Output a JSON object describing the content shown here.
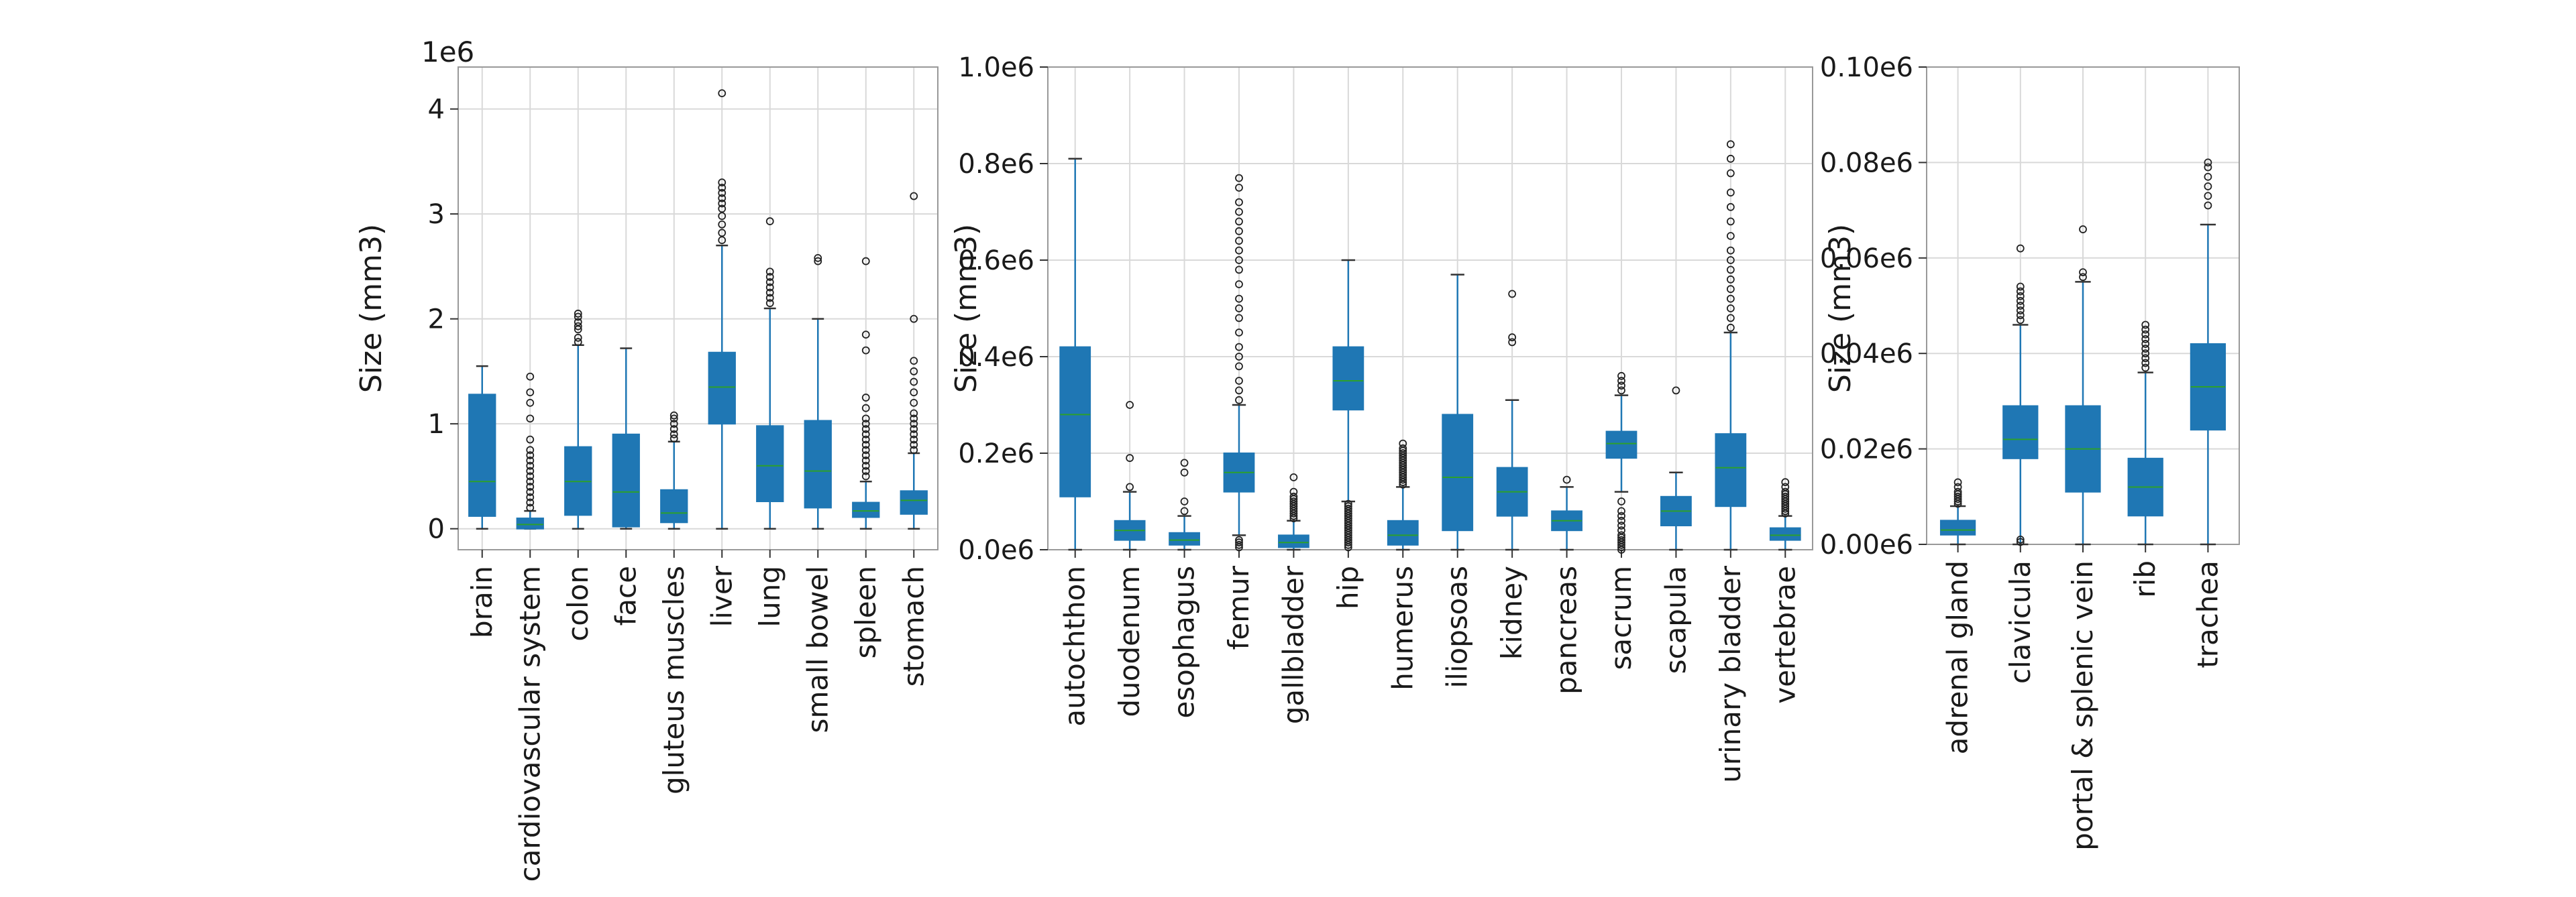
{
  "colors": {
    "box": "#1f77b4",
    "whisker": "#1f77b4",
    "median": "#2ca02c",
    "grid": "#d9d9d9",
    "frame": "#999999",
    "flier": "#222222"
  },
  "chart_data": [
    {
      "type": "box",
      "ylabel": "Size (mm3)",
      "offset_label": "1e6",
      "ylim": [
        -0.2,
        4.4
      ],
      "yticks": [
        0,
        1,
        2,
        3,
        4
      ],
      "ytick_labels": [
        "0",
        "1",
        "2",
        "3",
        "4"
      ],
      "categories": [
        "brain",
        "cardiovascular system",
        "colon",
        "face",
        "gluteus muscles",
        "liver",
        "lung",
        "small bowel",
        "spleen",
        "stomach"
      ],
      "boxes": [
        {
          "label": "brain",
          "whislo": 0.0,
          "q1": 0.12,
          "med": 0.45,
          "q3": 1.28,
          "whishi": 1.55,
          "fliers": []
        },
        {
          "label": "cardiovascular system",
          "whislo": 0.0,
          "q1": 0.0,
          "med": 0.04,
          "q3": 0.1,
          "whishi": 0.17,
          "fliers": [
            0.2,
            0.25,
            0.3,
            0.35,
            0.4,
            0.45,
            0.5,
            0.55,
            0.6,
            0.65,
            0.7,
            0.75,
            0.85,
            1.05,
            1.2,
            1.3,
            1.45
          ]
        },
        {
          "label": "colon",
          "whislo": 0.0,
          "q1": 0.13,
          "med": 0.45,
          "q3": 0.78,
          "whishi": 1.75,
          "fliers": [
            1.78,
            1.82,
            1.9,
            1.93,
            1.97,
            2.02,
            2.05
          ]
        },
        {
          "label": "face",
          "whislo": 0.0,
          "q1": 0.02,
          "med": 0.35,
          "q3": 0.9,
          "whishi": 1.72,
          "fliers": []
        },
        {
          "label": "gluteus muscles",
          "whislo": 0.0,
          "q1": 0.06,
          "med": 0.15,
          "q3": 0.37,
          "whishi": 0.83,
          "fliers": [
            0.86,
            0.9,
            0.95,
            1.0,
            1.05,
            1.08
          ]
        },
        {
          "label": "liver",
          "whislo": 0.0,
          "q1": 1.0,
          "med": 1.35,
          "q3": 1.68,
          "whishi": 2.7,
          "fliers": [
            2.75,
            2.82,
            2.9,
            2.98,
            3.05,
            3.1,
            3.15,
            3.2,
            3.25,
            3.3,
            4.15
          ]
        },
        {
          "label": "lung",
          "whislo": 0.0,
          "q1": 0.26,
          "med": 0.6,
          "q3": 0.98,
          "whishi": 2.1,
          "fliers": [
            2.15,
            2.2,
            2.25,
            2.3,
            2.35,
            2.4,
            2.45,
            2.93
          ]
        },
        {
          "label": "small bowel",
          "whislo": 0.0,
          "q1": 0.2,
          "med": 0.55,
          "q3": 1.03,
          "whishi": 2.0,
          "fliers": [
            2.55,
            2.58
          ]
        },
        {
          "label": "spleen",
          "whislo": 0.0,
          "q1": 0.11,
          "med": 0.17,
          "q3": 0.25,
          "whishi": 0.45,
          "fliers": [
            0.5,
            0.55,
            0.6,
            0.65,
            0.7,
            0.75,
            0.8,
            0.85,
            0.9,
            0.95,
            1.0,
            1.05,
            1.15,
            1.25,
            1.7,
            1.85,
            2.55
          ]
        },
        {
          "label": "stomach",
          "whislo": 0.0,
          "q1": 0.14,
          "med": 0.27,
          "q3": 0.36,
          "whishi": 0.72,
          "fliers": [
            0.75,
            0.8,
            0.85,
            0.9,
            0.95,
            1.0,
            1.05,
            1.1,
            1.2,
            1.3,
            1.4,
            1.5,
            1.6,
            2.0,
            3.17
          ]
        }
      ]
    },
    {
      "type": "box",
      "ylabel": "Size (mm3)",
      "ylim": [
        0.0,
        1.0
      ],
      "yticks": [
        0.0,
        0.2,
        0.4,
        0.6,
        0.8,
        1.0
      ],
      "ytick_labels": [
        "0.0e6",
        "0.2e6",
        "0.4e6",
        "0.6e6",
        "0.8e6",
        "1.0e6"
      ],
      "categories": [
        "autochthon",
        "duodenum",
        "esophagus",
        "femur",
        "gallbladder",
        "hip",
        "humerus",
        "iliopsoas",
        "kidney",
        "pancreas",
        "sacrum",
        "scapula",
        "urinary bladder",
        "vertebrae"
      ],
      "boxes": [
        {
          "label": "autochthon",
          "whislo": 0.0,
          "q1": 0.11,
          "med": 0.28,
          "q3": 0.42,
          "whishi": 0.81,
          "fliers": []
        },
        {
          "label": "duodenum",
          "whislo": 0.0,
          "q1": 0.02,
          "med": 0.04,
          "q3": 0.06,
          "whishi": 0.12,
          "fliers": [
            0.13,
            0.19,
            0.3
          ]
        },
        {
          "label": "esophagus",
          "whislo": 0.0,
          "q1": 0.01,
          "med": 0.02,
          "q3": 0.035,
          "whishi": 0.07,
          "fliers": [
            0.08,
            0.1,
            0.16,
            0.18
          ]
        },
        {
          "label": "femur",
          "whislo": 0.03,
          "q1": 0.12,
          "med": 0.16,
          "q3": 0.2,
          "whishi": 0.3,
          "fliers": [
            0.005,
            0.01,
            0.015,
            0.02,
            0.31,
            0.33,
            0.35,
            0.38,
            0.4,
            0.42,
            0.45,
            0.48,
            0.5,
            0.52,
            0.55,
            0.58,
            0.6,
            0.62,
            0.64,
            0.66,
            0.68,
            0.7,
            0.72,
            0.75,
            0.77
          ]
        },
        {
          "label": "gallbladder",
          "whislo": 0.0,
          "q1": 0.005,
          "med": 0.015,
          "q3": 0.03,
          "whishi": 0.06,
          "fliers": [
            0.065,
            0.07,
            0.075,
            0.08,
            0.085,
            0.09,
            0.095,
            0.1,
            0.105,
            0.11,
            0.12,
            0.15
          ]
        },
        {
          "label": "hip",
          "whislo": 0.1,
          "q1": 0.29,
          "med": 0.35,
          "q3": 0.42,
          "whishi": 0.6,
          "fliers": [
            0.005,
            0.01,
            0.015,
            0.02,
            0.025,
            0.03,
            0.035,
            0.04,
            0.045,
            0.05,
            0.055,
            0.06,
            0.065,
            0.07,
            0.075,
            0.08,
            0.085,
            0.09,
            0.095
          ]
        },
        {
          "label": "humerus",
          "whislo": 0.0,
          "q1": 0.01,
          "med": 0.03,
          "q3": 0.06,
          "whishi": 0.13,
          "fliers": [
            0.135,
            0.14,
            0.145,
            0.15,
            0.155,
            0.16,
            0.165,
            0.17,
            0.175,
            0.18,
            0.185,
            0.19,
            0.195,
            0.2,
            0.205,
            0.21,
            0.22
          ]
        },
        {
          "label": "iliopsoas",
          "whislo": 0.0,
          "q1": 0.04,
          "med": 0.15,
          "q3": 0.28,
          "whishi": 0.57,
          "fliers": []
        },
        {
          "label": "kidney",
          "whislo": 0.0,
          "q1": 0.07,
          "med": 0.12,
          "q3": 0.17,
          "whishi": 0.31,
          "fliers": [
            0.43,
            0.44,
            0.53
          ]
        },
        {
          "label": "pancreas",
          "whislo": 0.0,
          "q1": 0.04,
          "med": 0.06,
          "q3": 0.08,
          "whishi": 0.13,
          "fliers": [
            0.145
          ]
        },
        {
          "label": "sacrum",
          "whislo": 0.12,
          "q1": 0.19,
          "med": 0.22,
          "q3": 0.245,
          "whishi": 0.32,
          "fliers": [
            0.0,
            0.005,
            0.01,
            0.015,
            0.02,
            0.025,
            0.03,
            0.04,
            0.05,
            0.06,
            0.07,
            0.08,
            0.1,
            0.33,
            0.34,
            0.35,
            0.36
          ]
        },
        {
          "label": "scapula",
          "whislo": 0.0,
          "q1": 0.05,
          "med": 0.08,
          "q3": 0.11,
          "whishi": 0.16,
          "fliers": [
            0.33
          ]
        },
        {
          "label": "urinary bladder",
          "whislo": 0.0,
          "q1": 0.09,
          "med": 0.17,
          "q3": 0.24,
          "whishi": 0.45,
          "fliers": [
            0.46,
            0.48,
            0.5,
            0.52,
            0.54,
            0.56,
            0.58,
            0.6,
            0.62,
            0.65,
            0.68,
            0.71,
            0.74,
            0.78,
            0.81,
            0.84
          ]
        },
        {
          "label": "vertebrae",
          "whislo": 0.0,
          "q1": 0.02,
          "med": 0.03,
          "q3": 0.045,
          "whishi": 0.07,
          "fliers": [
            0.075,
            0.08,
            0.085,
            0.09,
            0.095,
            0.1,
            0.105,
            0.11,
            0.115,
            0.12,
            0.13,
            0.14
          ]
        }
      ]
    },
    {
      "type": "box",
      "ylabel": "Size (mm3)",
      "ylim": [
        0.0,
        0.1
      ],
      "yticks": [
        0.0,
        0.02,
        0.04,
        0.06,
        0.08,
        0.1
      ],
      "ytick_labels": [
        "0.00e6",
        "0.02e6",
        "0.04e6",
        "0.06e6",
        "0.08e6",
        "0.10e6"
      ],
      "categories": [
        "adrenal gland",
        "clavicula",
        "portal & splenic vein",
        "rib",
        "trachea"
      ],
      "boxes": [
        {
          "label": "adrenal gland",
          "whislo": 0.0,
          "q1": 0.002,
          "med": 0.003,
          "q3": 0.005,
          "whishi": 0.008,
          "fliers": [
            0.0085,
            0.009,
            0.0095,
            0.01,
            0.0105,
            0.011,
            0.012,
            0.013
          ]
        },
        {
          "label": "clavicula",
          "whislo": 0.0,
          "q1": 0.018,
          "med": 0.022,
          "q3": 0.029,
          "whishi": 0.046,
          "fliers": [
            0.0005,
            0.001,
            0.047,
            0.048,
            0.049,
            0.05,
            0.051,
            0.052,
            0.053,
            0.054,
            0.062
          ]
        },
        {
          "label": "portal & splenic vein",
          "whislo": 0.0,
          "q1": 0.011,
          "med": 0.02,
          "q3": 0.029,
          "whishi": 0.055,
          "fliers": [
            0.056,
            0.057,
            0.066
          ]
        },
        {
          "label": "rib",
          "whislo": 0.0,
          "q1": 0.006,
          "med": 0.012,
          "q3": 0.018,
          "whishi": 0.036,
          "fliers": [
            0.037,
            0.038,
            0.039,
            0.04,
            0.041,
            0.042,
            0.043,
            0.044,
            0.045,
            0.046
          ]
        },
        {
          "label": "trachea",
          "whislo": 0.0,
          "q1": 0.024,
          "med": 0.033,
          "q3": 0.042,
          "whishi": 0.067,
          "fliers": [
            0.071,
            0.073,
            0.075,
            0.077,
            0.079,
            0.08
          ]
        }
      ]
    }
  ]
}
